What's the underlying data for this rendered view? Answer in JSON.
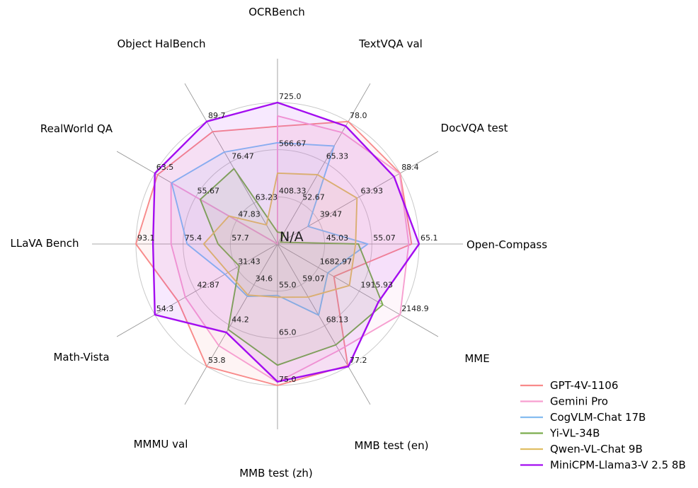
{
  "chart_data": {
    "type": "radar",
    "title": "",
    "center_label": "N/A",
    "grid": true,
    "ring_fractions": [
      0.3333,
      0.6667,
      1.0
    ],
    "legend_position": "lower right",
    "axes": [
      {
        "label": "OCRBench",
        "min": 250,
        "max": 725,
        "tick_labels": [
          "408.33",
          "566.67",
          "725.0"
        ]
      },
      {
        "label": "TextVQA val",
        "min": 40,
        "max": 78.0,
        "tick_labels": [
          "52.67",
          "65.33",
          "78.0"
        ]
      },
      {
        "label": "DocVQA test",
        "min": 15,
        "max": 88.4,
        "tick_labels": [
          "39.47",
          "63.93",
          "88.4"
        ]
      },
      {
        "label": "Open-Compass",
        "min": 35,
        "max": 65.1,
        "tick_labels": [
          "45.03",
          "55.07",
          "65.1"
        ]
      },
      {
        "label": "MME",
        "min": 1450,
        "max": 2148.9,
        "tick_labels": [
          "1682.97",
          "1915.93",
          "2148.9"
        ]
      },
      {
        "label": "MMB test (en)",
        "min": 50,
        "max": 77.2,
        "tick_labels": [
          "59.07",
          "68.13",
          "77.2"
        ]
      },
      {
        "label": "MMB test (zh)",
        "min": 45,
        "max": 75.0,
        "tick_labels": [
          "55.0",
          "65.0",
          "75.0"
        ]
      },
      {
        "label": "MMMU val",
        "min": 25,
        "max": 53.8,
        "tick_labels": [
          "34.6",
          "44.2",
          "53.8"
        ]
      },
      {
        "label": "Math-Vista",
        "min": 20,
        "max": 54.3,
        "tick_labels": [
          "31.43",
          "42.87",
          "54.3"
        ]
      },
      {
        "label": "LLaVA Bench",
        "min": 40,
        "max": 93.1,
        "tick_labels": [
          "57.7",
          "75.4",
          "93.1"
        ]
      },
      {
        "label": "RealWorld QA",
        "min": 40,
        "max": 63.5,
        "tick_labels": [
          "47.83",
          "55.67",
          "63.5"
        ]
      },
      {
        "label": "Object HalBench",
        "min": 50,
        "max": 89.7,
        "tick_labels": [
          "63.23",
          "76.47",
          "89.7"
        ]
      }
    ],
    "series": [
      {
        "name": "GPT-4V-1106",
        "color": "#f88a8a",
        "values": [
          645,
          78.0,
          88.4,
          63.5,
          1771.5,
          77.0,
          75.0,
          53.8,
          47.8,
          93.1,
          63.0,
          86.4
        ]
      },
      {
        "name": "Gemini Pro",
        "color": "#f79fd0",
        "values": [
          680,
          74.6,
          88.1,
          62.9,
          2148.9,
          73.6,
          74.3,
          48.9,
          45.8,
          79.9,
          60.4,
          null
        ]
      },
      {
        "name": "CogVLM-Chat 17B",
        "color": "#85bcf0",
        "values": [
          590,
          70.4,
          33.3,
          54.2,
          1736.6,
          65.8,
          55.9,
          37.3,
          34.7,
          73.9,
          60.3,
          79.8
        ]
      },
      {
        "name": "Yi-VL-34B",
        "color": "#7cad4e",
        "values": [
          290,
          43.4,
          16.9,
          52.2,
          2050.2,
          72.4,
          70.7,
          45.1,
          30.7,
          62.3,
          54.8,
          74.4
        ]
      },
      {
        "name": "Qwen-VL-Chat 9B",
        "color": "#e0bf64",
        "values": [
          488,
          61.5,
          62.6,
          51.6,
          1860.0,
          61.8,
          56.3,
          37.0,
          33.8,
          67.7,
          49.3,
          56.2
        ]
      },
      {
        "name": "MiniCPM-Llama3-V 2.5 8B",
        "color": "#a30df0",
        "values": [
          725,
          76.6,
          84.8,
          65.1,
          2024.6,
          77.2,
          74.2,
          45.8,
          54.3,
          86.7,
          63.5,
          89.7
        ]
      }
    ],
    "style": {
      "ring_color": "#c9c9c9",
      "spoke_color": "#8f8f8f",
      "fill_opacity": 0.09,
      "background": "#ffffff"
    }
  }
}
